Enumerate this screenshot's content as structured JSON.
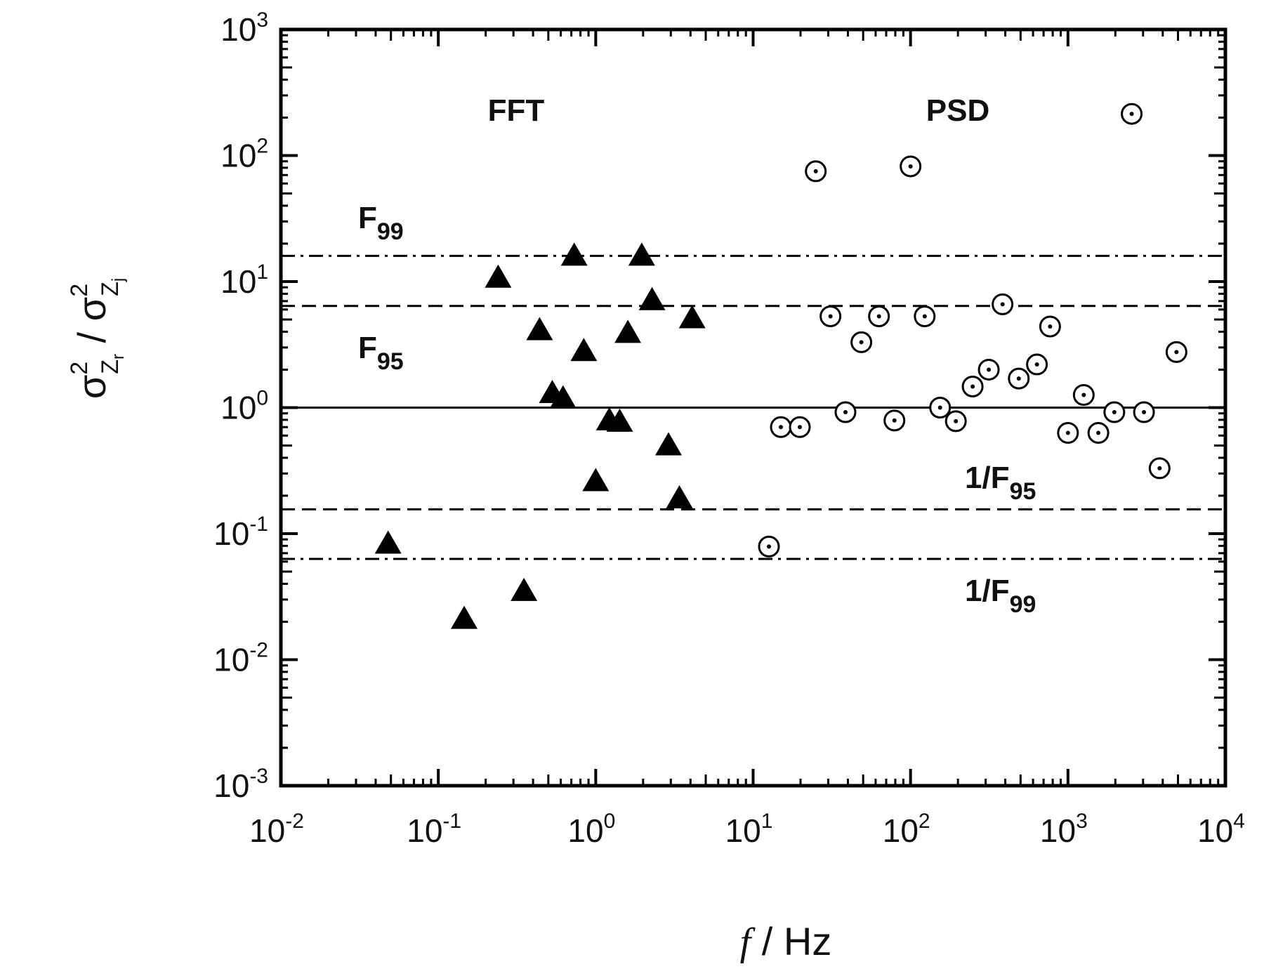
{
  "chart_data": {
    "type": "scatter",
    "log_x": true,
    "log_y": true,
    "xlim": [
      0.01,
      10000
    ],
    "ylim": [
      0.001,
      1000
    ],
    "xticks": [
      {
        "value": 0.01,
        "label": "10",
        "exponent": "-2"
      },
      {
        "value": 0.1,
        "label": "10",
        "exponent": "-1"
      },
      {
        "value": 1,
        "label": "10",
        "exponent": "0"
      },
      {
        "value": 10,
        "label": "10",
        "exponent": "1"
      },
      {
        "value": 100,
        "label": "10",
        "exponent": "2"
      },
      {
        "value": 1000,
        "label": "10",
        "exponent": "3"
      },
      {
        "value": 10000,
        "label": "10",
        "exponent": "4"
      }
    ],
    "yticks": [
      {
        "value": 0.001,
        "label": "10",
        "exponent": "-3"
      },
      {
        "value": 0.01,
        "label": "10",
        "exponent": "-2"
      },
      {
        "value": 0.1,
        "label": "10",
        "exponent": "-1"
      },
      {
        "value": 1,
        "label": "10",
        "exponent": "0"
      },
      {
        "value": 10,
        "label": "10",
        "exponent": "1"
      },
      {
        "value": 100,
        "label": "10",
        "exponent": "2"
      },
      {
        "value": 1000,
        "label": "10",
        "exponent": "3"
      }
    ],
    "xlabel": [
      "f",
      " / Hz"
    ],
    "ylabel": [
      "σ",
      "2",
      "Z",
      "r",
      " / ",
      "σ",
      "2",
      "Z",
      "j"
    ],
    "series": [
      {
        "marker": "triangle",
        "color": "#000000",
        "x": [
          0.048,
          0.146,
          0.35,
          0.24,
          0.73,
          1.96,
          0.44,
          0.84,
          0.53,
          0.62,
          1.22,
          1.42,
          1.6,
          2.28,
          4.1,
          2.9,
          3.4,
          1.0
        ],
        "values": [
          0.083,
          0.021,
          0.035,
          10.7,
          16,
          16,
          4.1,
          2.8,
          1.3,
          1.18,
          0.79,
          0.77,
          3.9,
          7.1,
          5.1,
          0.5,
          0.19,
          0.26
        ]
      },
      {
        "marker": "circle",
        "color": "#000000",
        "x": [
          25,
          100,
          2540,
          12.6,
          15,
          19.8,
          31,
          38.6,
          48.7,
          63,
          79,
          123,
          154,
          194,
          248,
          314,
          384,
          487,
          635,
          770,
          1000,
          1260,
          1560,
          1970,
          3040,
          3820,
          4890
        ],
        "values": [
          75,
          82,
          214,
          0.079,
          0.7,
          0.7,
          5.3,
          0.92,
          3.3,
          5.3,
          0.79,
          5.3,
          1.0,
          0.78,
          1.47,
          2.0,
          6.6,
          1.7,
          2.2,
          4.4,
          0.63,
          1.26,
          0.63,
          0.92,
          0.92,
          0.33,
          2.76
        ]
      }
    ],
    "reference_lines": [
      {
        "value": 16,
        "style": "dashdot"
      },
      {
        "value": 6.4,
        "style": "dashed"
      },
      {
        "value": 1,
        "style": "solid"
      },
      {
        "value": 0.156,
        "style": "dashed"
      },
      {
        "value": 0.063,
        "style": "dashdot"
      }
    ],
    "annotations": [
      {
        "text": "FFT"
      },
      {
        "text": "PSD"
      },
      {
        "text": "F",
        "subscript": "99"
      },
      {
        "text": "F",
        "subscript": "95"
      },
      {
        "text": "1/F",
        "subscript": "95"
      },
      {
        "text": "1/F",
        "subscript": "99"
      }
    ]
  }
}
